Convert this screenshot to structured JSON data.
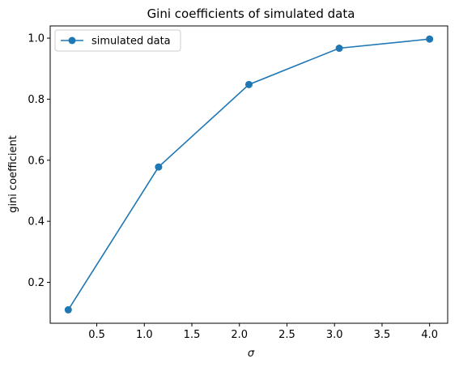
{
  "chart_data": {
    "type": "line",
    "title": "Gini coefficients of simulated data",
    "xlabel": "σ",
    "ylabel": "gini coefficient",
    "x": [
      0.2,
      1.15,
      2.1,
      3.05,
      4.0
    ],
    "series": [
      {
        "name": "simulated data",
        "values": [
          0.11,
          0.578,
          0.848,
          0.967,
          0.997
        ]
      }
    ],
    "xlim": [
      0.01,
      4.19
    ],
    "ylim": [
      0.066,
      1.04
    ],
    "xticks": [
      0.5,
      1.0,
      1.5,
      2.0,
      2.5,
      3.0,
      3.5,
      4.0
    ],
    "xtick_labels": [
      "0.5",
      "1.0",
      "1.5",
      "2.0",
      "2.5",
      "3.0",
      "3.5",
      "4.0"
    ],
    "yticks": [
      0.2,
      0.4,
      0.6,
      0.8,
      1.0
    ],
    "ytick_labels": [
      "0.2",
      "0.4",
      "0.6",
      "0.8",
      "1.0"
    ],
    "grid": false,
    "legend_position": "top-left",
    "colors": {
      "series": "#1f77b4"
    },
    "marker": "circle"
  }
}
